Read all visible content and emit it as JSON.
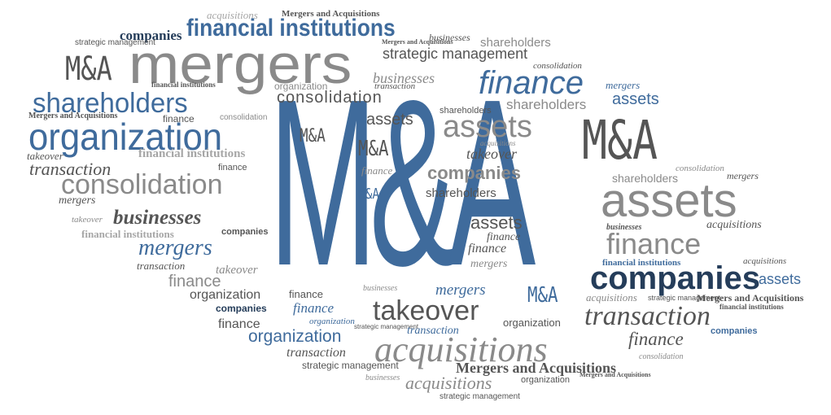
{
  "words": [
    "M&A",
    "mergers",
    "acquisitions",
    "financial institutions",
    "organization",
    "shareholders",
    "consolidation",
    "assets",
    "companies",
    "businesses",
    "finance",
    "transaction",
    "takeover",
    "tender offers",
    "strategic management",
    "Mergers and Acquisitions"
  ],
  "colors": {
    "blue": "#3f6b9c",
    "dark_blue": "#253d5a",
    "light_blue": "#6a8fb8",
    "gray": "#8a8a8a",
    "dark_gray": "#555555",
    "light_gray": "#a6a6a6"
  }
}
